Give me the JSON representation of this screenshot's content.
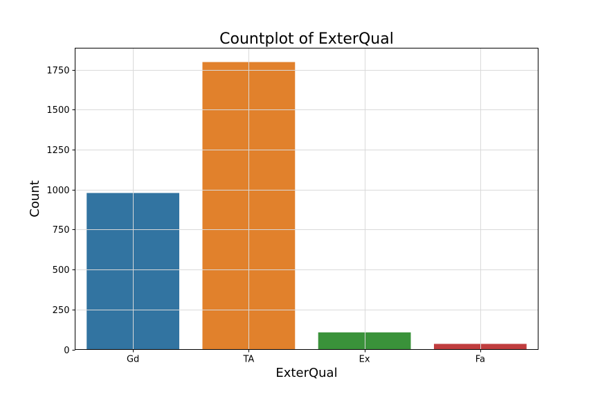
{
  "chart_data": {
    "type": "bar",
    "title": "Countplot of ExterQual",
    "xlabel": "ExterQual",
    "ylabel": "Count",
    "categories": [
      "Gd",
      "TA",
      "Ex",
      "Fa"
    ],
    "values": [
      979,
      1798,
      107,
      35
    ],
    "colors": [
      "#3274a1",
      "#e1812c",
      "#3a923a",
      "#c03d3e"
    ],
    "ylim": [
      0,
      1885
    ],
    "yticks": [
      0,
      250,
      500,
      750,
      1000,
      1250,
      1500,
      1750
    ],
    "grid": true
  }
}
